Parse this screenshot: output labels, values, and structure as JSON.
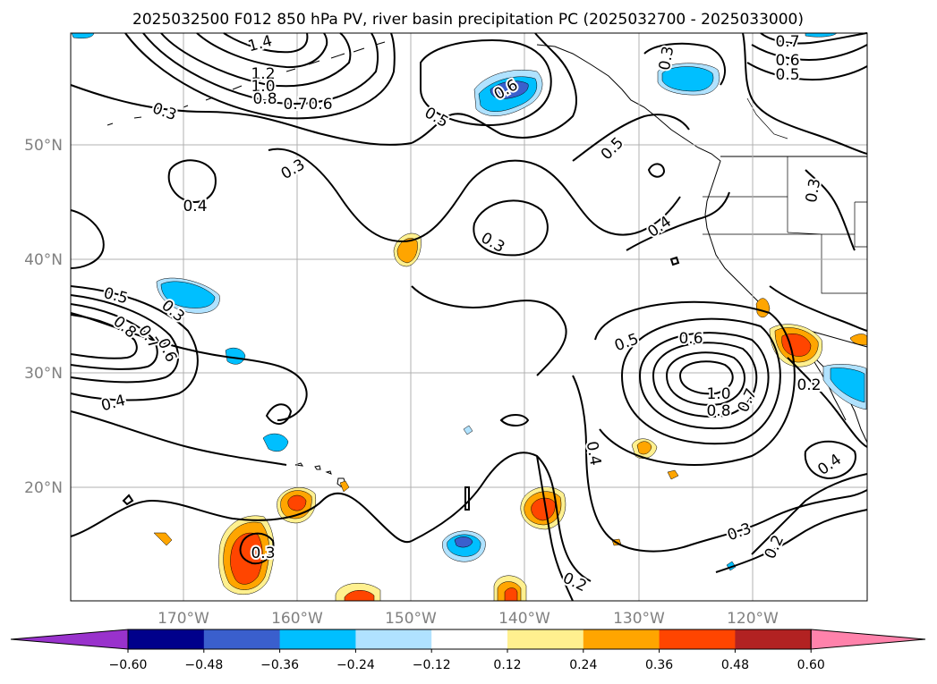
{
  "title": "2025032500 F012 850 hPa PV, river basin precipitation PC (2025032700 - 2025033000)",
  "lon_labels": [
    "170°W",
    "160°W",
    "150°W",
    "140°W",
    "130°W",
    "120°W"
  ],
  "lat_labels": [
    "50°N",
    "40°N",
    "30°N",
    "20°N"
  ],
  "colorbar": {
    "colors": [
      "#9932cc",
      "#00008b",
      "#3a5fcd",
      "#00bfff",
      "#b0e2ff",
      "#ffffff",
      "#fff08f",
      "#ffa500",
      "#ff4500",
      "#b22222",
      "#ff82ab"
    ],
    "ticks": [
      "−0.60",
      "−0.48",
      "−0.36",
      "−0.24",
      "−0.12",
      "0.12",
      "0.24",
      "0.36",
      "0.48",
      "0.60"
    ]
  },
  "contour_labels": [
    "1.4",
    "1.2",
    "1.0",
    "0.8",
    "0.7",
    "0.6",
    "0.3",
    "0.4",
    "0.5",
    "0.6",
    "0.3",
    "0.5",
    "0.4",
    "0.3",
    "0.7",
    "0.6",
    "0.5",
    "0.3",
    "0.5",
    "0.8",
    "0.7",
    "0.6",
    "0.3",
    "0.4",
    "0.3",
    "0.5",
    "0.6",
    "1.0",
    "0.8",
    "0.7",
    "0.2",
    "0.4",
    "0.4",
    "0.3",
    "0.2",
    "0.2",
    "0.3"
  ]
}
